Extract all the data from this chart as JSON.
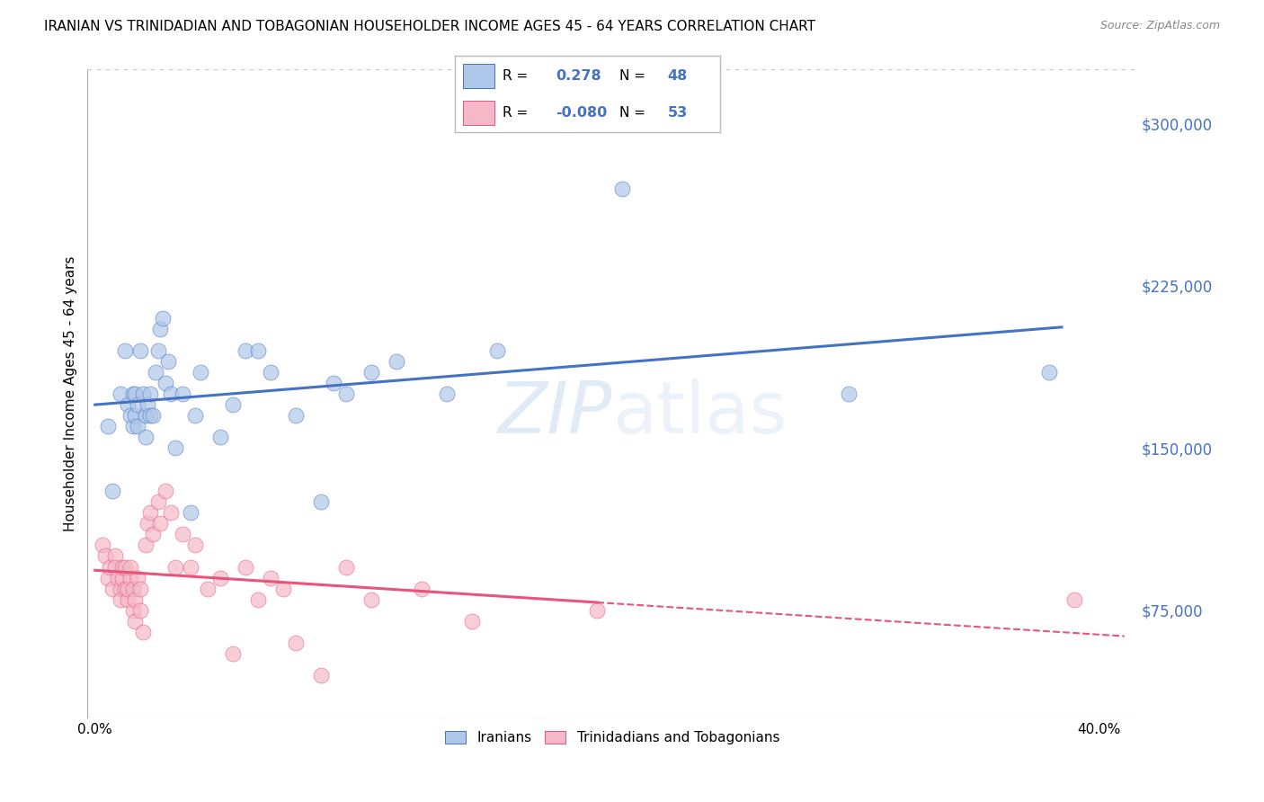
{
  "title": "IRANIAN VS TRINIDADIAN AND TOBAGONIAN HOUSEHOLDER INCOME AGES 45 - 64 YEARS CORRELATION CHART",
  "source": "Source: ZipAtlas.com",
  "ylabel": "Householder Income Ages 45 - 64 years",
  "xlabel_ticks": [
    "0.0%",
    "",
    "",
    "",
    "",
    "",
    "",
    "",
    "40.0%"
  ],
  "xlabel_vals": [
    0.0,
    0.05,
    0.1,
    0.15,
    0.2,
    0.25,
    0.3,
    0.35,
    0.4
  ],
  "ytick_labels": [
    "$75,000",
    "$150,000",
    "$225,000",
    "$300,000"
  ],
  "ytick_vals": [
    75000,
    150000,
    225000,
    300000
  ],
  "ylim": [
    25000,
    325000
  ],
  "xlim": [
    -0.003,
    0.415
  ],
  "legend_R_iranian": "0.278",
  "legend_N_iranian": "48",
  "legend_R_trinidadian": "-0.080",
  "legend_N_trinidadian": "53",
  "color_iranian": "#aec6e8",
  "color_trinidadian": "#f4b8c8",
  "color_iranian_line": "#4472c4",
  "color_trinidadian_line": "#e8547a",
  "background_color": "#ffffff",
  "grid_color": "#cccccc",
  "iranian_x": [
    0.005,
    0.007,
    0.01,
    0.012,
    0.013,
    0.014,
    0.015,
    0.015,
    0.016,
    0.016,
    0.017,
    0.017,
    0.018,
    0.019,
    0.02,
    0.02,
    0.021,
    0.022,
    0.022,
    0.023,
    0.024,
    0.025,
    0.026,
    0.027,
    0.028,
    0.029,
    0.03,
    0.032,
    0.035,
    0.038,
    0.04,
    0.042,
    0.05,
    0.055,
    0.06,
    0.065,
    0.07,
    0.08,
    0.09,
    0.095,
    0.1,
    0.11,
    0.12,
    0.14,
    0.16,
    0.21,
    0.3,
    0.38
  ],
  "iranian_y": [
    160000,
    130000,
    175000,
    195000,
    170000,
    165000,
    175000,
    160000,
    175000,
    165000,
    170000,
    160000,
    195000,
    175000,
    165000,
    155000,
    170000,
    165000,
    175000,
    165000,
    185000,
    195000,
    205000,
    210000,
    180000,
    190000,
    175000,
    150000,
    175000,
    120000,
    165000,
    185000,
    155000,
    170000,
    195000,
    195000,
    185000,
    165000,
    125000,
    180000,
    175000,
    185000,
    190000,
    175000,
    195000,
    270000,
    175000,
    185000
  ],
  "trinidadian_x": [
    0.003,
    0.004,
    0.005,
    0.006,
    0.007,
    0.008,
    0.008,
    0.009,
    0.01,
    0.01,
    0.011,
    0.011,
    0.012,
    0.012,
    0.013,
    0.013,
    0.014,
    0.014,
    0.015,
    0.015,
    0.016,
    0.016,
    0.017,
    0.018,
    0.018,
    0.019,
    0.02,
    0.021,
    0.022,
    0.023,
    0.025,
    0.026,
    0.028,
    0.03,
    0.032,
    0.035,
    0.038,
    0.04,
    0.045,
    0.05,
    0.055,
    0.06,
    0.065,
    0.07,
    0.075,
    0.08,
    0.09,
    0.1,
    0.11,
    0.13,
    0.15,
    0.2,
    0.39
  ],
  "trinidadian_y": [
    105000,
    100000,
    90000,
    95000,
    85000,
    100000,
    95000,
    90000,
    85000,
    80000,
    90000,
    95000,
    85000,
    95000,
    80000,
    85000,
    90000,
    95000,
    75000,
    85000,
    70000,
    80000,
    90000,
    85000,
    75000,
    65000,
    105000,
    115000,
    120000,
    110000,
    125000,
    115000,
    130000,
    120000,
    95000,
    110000,
    95000,
    105000,
    85000,
    90000,
    55000,
    95000,
    80000,
    90000,
    85000,
    60000,
    45000,
    95000,
    80000,
    85000,
    70000,
    75000,
    80000
  ]
}
